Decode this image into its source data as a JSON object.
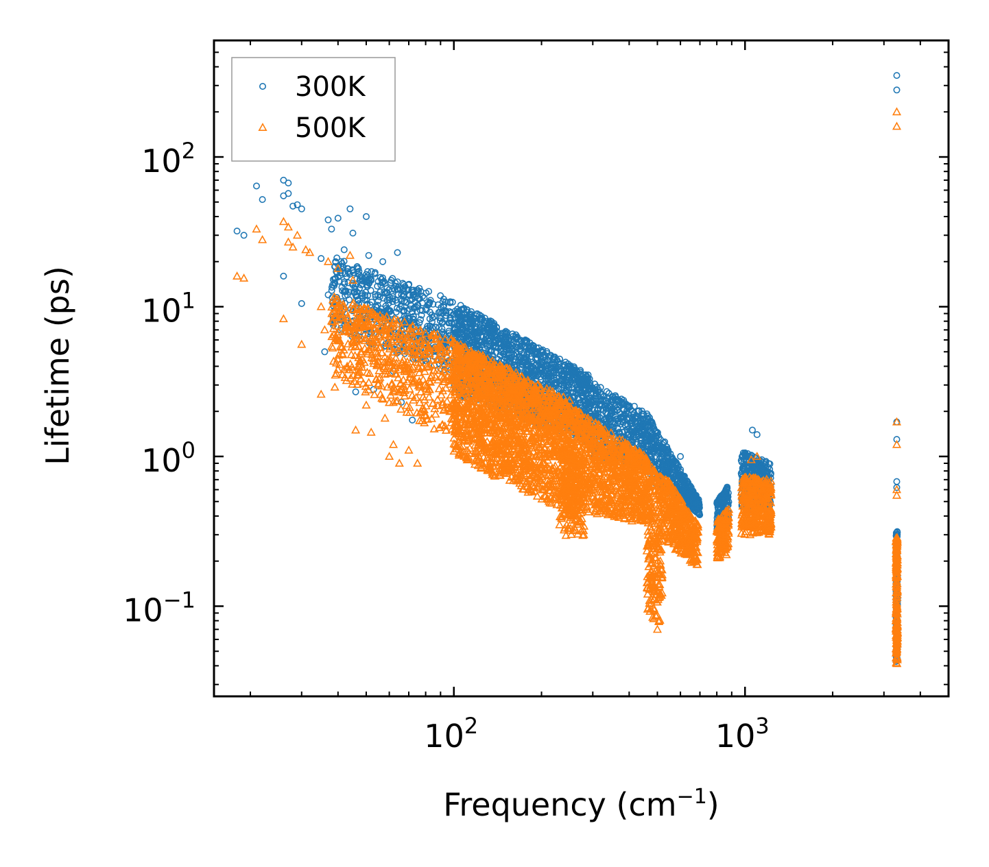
{
  "chart_data": {
    "type": "scatter",
    "title": "",
    "xlabel": "Frequency (cm",
    "xlabel_superscript": "−1",
    "xlabel_suffix": ")",
    "ylabel": "Lifetime (ps)",
    "xscale": "log",
    "yscale": "log",
    "xlim": [
      15,
      5000
    ],
    "ylim": [
      0.025,
      600
    ],
    "x_ticks": [
      {
        "value": 100,
        "base": "10",
        "exp": "2"
      },
      {
        "value": 1000,
        "base": "10",
        "exp": "3"
      }
    ],
    "y_ticks": [
      {
        "value": 0.1,
        "base": "10",
        "exp": "−1"
      },
      {
        "value": 1,
        "base": "10",
        "exp": "0"
      },
      {
        "value": 10,
        "base": "10",
        "exp": "1"
      },
      {
        "value": 100,
        "base": "10",
        "exp": "2"
      }
    ],
    "legend_position": "top-left",
    "series": [
      {
        "name": "300K",
        "marker": "circle",
        "color": "#1f77b4",
        "points": [
          [
            18,
            32
          ],
          [
            19,
            30
          ],
          [
            21,
            64
          ],
          [
            22,
            52
          ],
          [
            26,
            70
          ],
          [
            26,
            55
          ],
          [
            27,
            67
          ],
          [
            27,
            57
          ],
          [
            28,
            47
          ],
          [
            29,
            48
          ],
          [
            30,
            45
          ],
          [
            26,
            16
          ],
          [
            30,
            10.5
          ],
          [
            35,
            21
          ],
          [
            36,
            5
          ],
          [
            37,
            38
          ],
          [
            37,
            12
          ],
          [
            38,
            33
          ],
          [
            39,
            8
          ],
          [
            40,
            39
          ],
          [
            40,
            11
          ],
          [
            41,
            20
          ],
          [
            42,
            24
          ],
          [
            43,
            18
          ],
          [
            44,
            45
          ],
          [
            45,
            31
          ],
          [
            46,
            2.7
          ],
          [
            46,
            12
          ],
          [
            47,
            18
          ],
          [
            48,
            14
          ],
          [
            50,
            40
          ],
          [
            51,
            22
          ],
          [
            52,
            15
          ],
          [
            53,
            2.8
          ],
          [
            55,
            11
          ],
          [
            57,
            20
          ],
          [
            58,
            8
          ],
          [
            60,
            13
          ],
          [
            62,
            3.7
          ],
          [
            64,
            23
          ],
          [
            66,
            2.3
          ],
          [
            72,
            1.75
          ],
          [
            75,
            4.5
          ]
        ],
        "bands": [
          {
            "x_min": 38,
            "x_max": 100,
            "y_hi_start": 22,
            "y_hi_end": 11,
            "y_lo_start": 7,
            "y_lo_end": 3.5,
            "count": 550
          },
          {
            "x_min": 100,
            "x_max": 300,
            "y_hi_start": 11,
            "y_hi_end": 3.4,
            "y_lo_start": 2.6,
            "y_lo_end": 1.2,
            "count": 1500
          },
          {
            "x_min": 300,
            "x_max": 470,
            "y_hi_start": 3.1,
            "y_hi_end": 1.9,
            "y_lo_start": 1.0,
            "y_lo_end": 0.8,
            "count": 450
          },
          {
            "x_min": 470,
            "x_max": 700,
            "y_hi_start": 1.8,
            "y_hi_end": 0.5,
            "y_lo_start": 0.7,
            "y_lo_end": 0.4,
            "count": 450
          },
          {
            "x_min": 800,
            "x_max": 880,
            "y_hi_start": 0.5,
            "y_hi_end": 0.65,
            "y_lo_start": 0.3,
            "y_lo_end": 0.35,
            "count": 150
          },
          {
            "x_min": 970,
            "x_max": 1230,
            "y_hi_start": 1.1,
            "y_hi_end": 0.9,
            "y_lo_start": 0.4,
            "y_lo_end": 0.45,
            "count": 350
          },
          {
            "x_min": 3300,
            "x_max": 3340,
            "y_hi_start": 0.32,
            "y_hi_end": 0.32,
            "y_lo_start": 0.04,
            "y_lo_end": 0.04,
            "count": 160
          }
        ],
        "extra_points": [
          [
            3320,
            350
          ],
          [
            3320,
            280
          ],
          [
            3320,
            1.7
          ],
          [
            3320,
            1.3
          ],
          [
            3320,
            0.68
          ],
          [
            3320,
            0.62
          ],
          [
            1060,
            1.5
          ],
          [
            1100,
            1.4
          ],
          [
            530,
            1.25
          ],
          [
            450,
            1.0
          ],
          [
            420,
            1.8
          ],
          [
            600,
            1.0
          ]
        ]
      },
      {
        "name": "500K",
        "marker": "triangle",
        "color": "#ff7f0e",
        "points": [
          [
            18,
            16
          ],
          [
            19,
            15.5
          ],
          [
            21,
            33
          ],
          [
            22,
            28
          ],
          [
            26,
            37
          ],
          [
            26,
            8.3
          ],
          [
            27,
            34
          ],
          [
            27,
            27
          ],
          [
            28,
            25
          ],
          [
            29,
            30
          ],
          [
            30,
            5.6
          ],
          [
            31,
            24
          ],
          [
            32,
            23
          ],
          [
            35,
            2.6
          ],
          [
            35,
            10
          ],
          [
            36,
            7
          ],
          [
            37,
            20
          ],
          [
            38,
            8
          ],
          [
            39,
            2.9
          ],
          [
            40,
            6
          ],
          [
            40,
            18
          ],
          [
            42,
            10
          ],
          [
            43,
            4
          ],
          [
            44,
            22
          ],
          [
            45,
            15
          ],
          [
            46,
            1.5
          ],
          [
            47,
            3.5
          ],
          [
            48,
            5
          ],
          [
            50,
            2.2
          ],
          [
            52,
            1.45
          ],
          [
            55,
            3
          ],
          [
            58,
            1.8
          ],
          [
            60,
            1.0
          ],
          [
            62,
            1.2
          ],
          [
            65,
            0.9
          ],
          [
            70,
            1.1
          ],
          [
            75,
            0.9
          ]
        ],
        "bands": [
          {
            "x_min": 38,
            "x_max": 100,
            "y_hi_start": 12,
            "y_hi_end": 6,
            "y_lo_start": 3.5,
            "y_lo_end": 1.3,
            "count": 550
          },
          {
            "x_min": 100,
            "x_max": 250,
            "y_hi_start": 6,
            "y_hi_end": 2.4,
            "y_lo_start": 1.0,
            "y_lo_end": 0.42,
            "count": 1700
          },
          {
            "x_min": 230,
            "x_max": 280,
            "y_hi_start": 1.2,
            "y_hi_end": 1.0,
            "y_lo_start": 0.3,
            "y_lo_end": 0.28,
            "count": 200
          },
          {
            "x_min": 250,
            "x_max": 460,
            "y_hi_start": 2.2,
            "y_hi_end": 1.0,
            "y_lo_start": 0.45,
            "y_lo_end": 0.35,
            "count": 900
          },
          {
            "x_min": 460,
            "x_max": 520,
            "y_hi_start": 0.9,
            "y_hi_end": 0.75,
            "y_lo_start": 0.09,
            "y_lo_end": 0.07,
            "count": 250
          },
          {
            "x_min": 520,
            "x_max": 690,
            "y_hi_start": 0.8,
            "y_hi_end": 0.35,
            "y_lo_start": 0.28,
            "y_lo_end": 0.18,
            "count": 400
          },
          {
            "x_min": 800,
            "x_max": 880,
            "y_hi_start": 0.38,
            "y_hi_end": 0.45,
            "y_lo_start": 0.2,
            "y_lo_end": 0.22,
            "count": 150
          },
          {
            "x_min": 970,
            "x_max": 1230,
            "y_hi_start": 0.75,
            "y_hi_end": 0.7,
            "y_lo_start": 0.3,
            "y_lo_end": 0.3,
            "count": 350
          },
          {
            "x_min": 3300,
            "x_max": 3340,
            "y_hi_start": 0.3,
            "y_hi_end": 0.3,
            "y_lo_start": 0.04,
            "y_lo_end": 0.04,
            "count": 160
          }
        ],
        "extra_points": [
          [
            3320,
            200
          ],
          [
            3320,
            160
          ],
          [
            3320,
            1.7
          ],
          [
            3320,
            1.2
          ],
          [
            3320,
            0.6
          ],
          [
            3320,
            0.55
          ],
          [
            1050,
            0.95
          ],
          [
            1100,
            1.0
          ],
          [
            540,
            0.65
          ],
          [
            500,
            0.07
          ]
        ]
      }
    ]
  }
}
